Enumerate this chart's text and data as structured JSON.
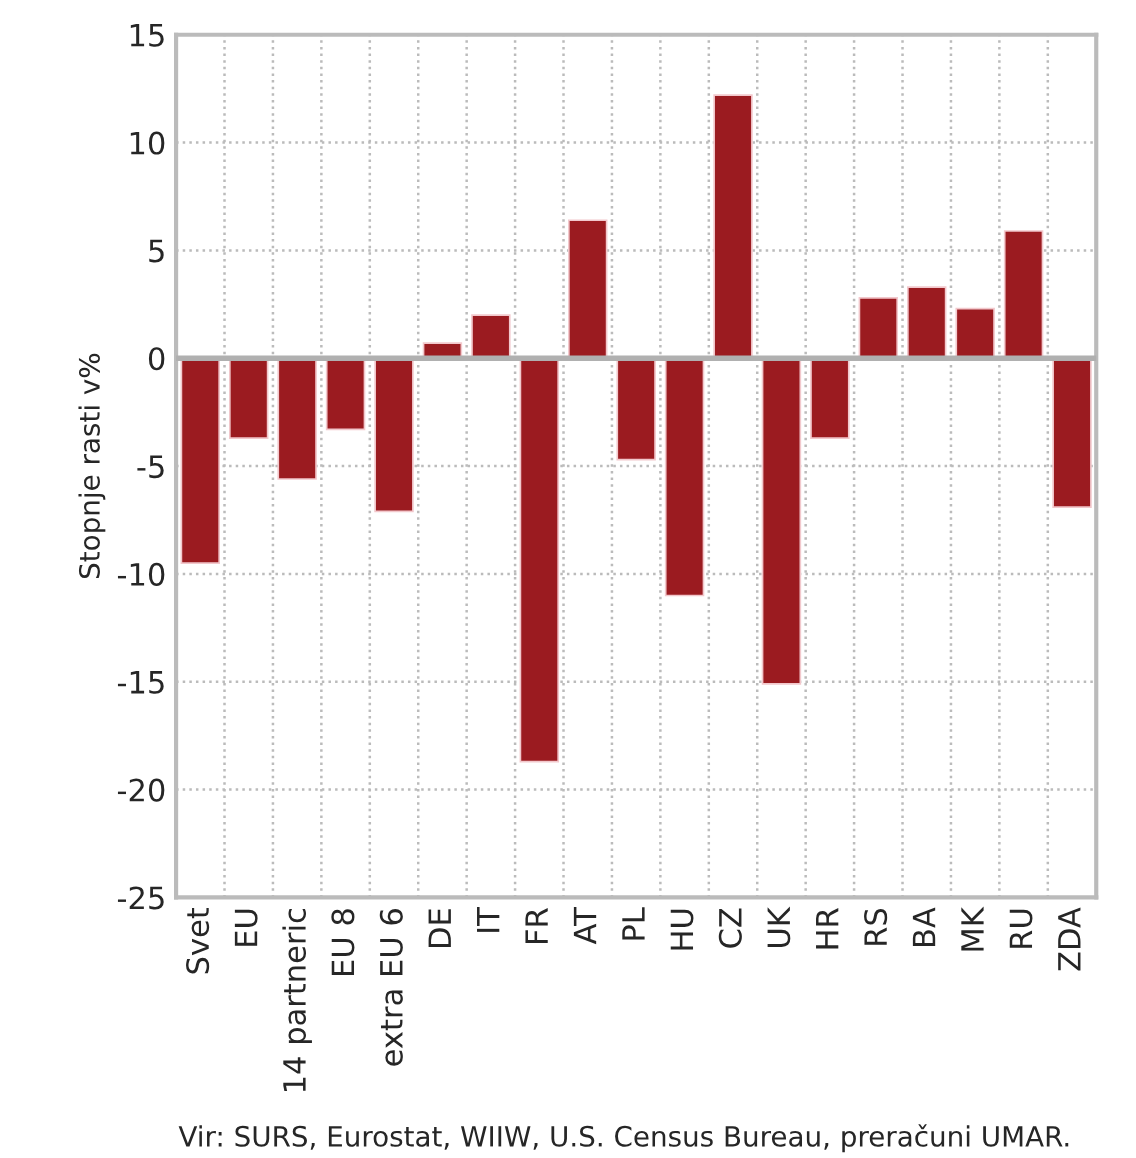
{
  "chart_data": {
    "type": "bar",
    "ylabel": "Stopnje rasti v%",
    "categories": [
      "Svet",
      "EU",
      "14 partneric",
      "EU 8",
      "extra EU 6",
      "DE",
      "IT",
      "FR",
      "AT",
      "PL",
      "HU",
      "CZ",
      "UK",
      "HR",
      "RS",
      "BA",
      "MK",
      "RU",
      "ZDA"
    ],
    "values": [
      -9.5,
      -3.7,
      -5.6,
      -3.3,
      -7.1,
      0.7,
      2.0,
      -18.7,
      6.4,
      -4.7,
      -11.0,
      12.2,
      -15.1,
      -3.7,
      2.8,
      3.3,
      2.3,
      5.9,
      -6.9
    ],
    "color": "#9b1b20",
    "ylim": [
      -25,
      15
    ],
    "yticks": [
      -25,
      -20,
      -15,
      -10,
      -5,
      0,
      5,
      10,
      15
    ],
    "grid": true,
    "annotations": [
      "Vir: SURS, Eurostat, WIIW, U.S. Census Bureau, preračuni UMAR."
    ]
  }
}
